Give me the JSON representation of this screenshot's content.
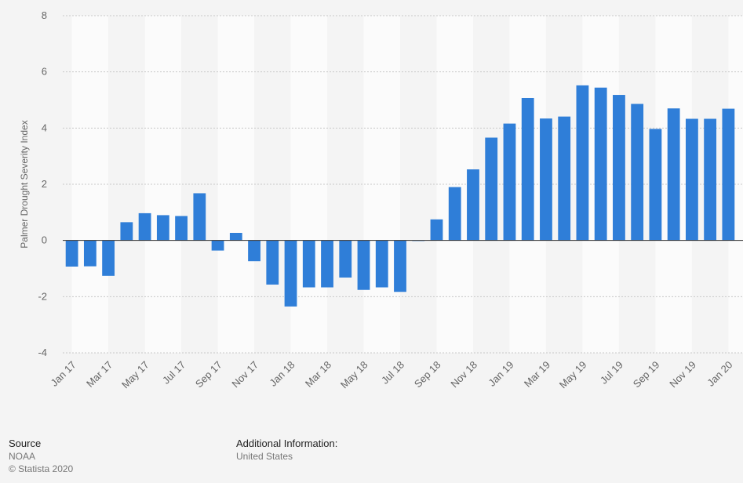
{
  "chart_data": {
    "type": "bar",
    "ylabel": "Palmer Drought Severity Index",
    "ylim": [
      -4,
      8
    ],
    "yticks": [
      -4,
      -2,
      0,
      2,
      4,
      6,
      8
    ],
    "grid": true,
    "bar_color": "#2f7ed8",
    "categories": [
      "Jan 17",
      "Feb 17",
      "Mar 17",
      "Apr 17",
      "May 17",
      "Jun 17",
      "Jul 17",
      "Aug 17",
      "Sep 17",
      "Oct 17",
      "Nov 17",
      "Dec 17",
      "Jan 18",
      "Feb 18",
      "Mar 18",
      "Apr 18",
      "May 18",
      "Jun 18",
      "Jul 18",
      "Aug 18",
      "Sep 18",
      "Oct 18",
      "Nov 18",
      "Dec 18",
      "Jan 19",
      "Feb 19",
      "Mar 19",
      "Apr 19",
      "May 19",
      "Jun 19",
      "Jul 19",
      "Aug 19",
      "Sep 19",
      "Oct 19",
      "Nov 19",
      "Dec 19",
      "Jan 20"
    ],
    "x_tick_labels": [
      "Jan 17",
      "Mar 17",
      "May 17",
      "Jul 17",
      "Sep 17",
      "Nov 17",
      "Jan 18",
      "Mar 18",
      "May 18",
      "Jul 18",
      "Sep 18",
      "Nov 18",
      "Jan 19",
      "Mar 19",
      "May 19",
      "Jul 19",
      "Sep 19",
      "Nov 19",
      "Jan 20"
    ],
    "values": [
      -0.93,
      -0.92,
      -1.26,
      0.65,
      0.97,
      0.9,
      0.87,
      1.68,
      -0.36,
      0.27,
      -0.74,
      -1.57,
      -2.35,
      -1.67,
      -1.67,
      -1.32,
      -1.76,
      -1.67,
      -1.83,
      -0.02,
      0.75,
      1.9,
      2.53,
      3.66,
      4.16,
      5.07,
      4.34,
      4.41,
      5.52,
      5.44,
      5.18,
      4.86,
      3.97,
      4.7,
      4.33,
      4.33,
      4.69
    ]
  },
  "footer": {
    "source_label": "Source",
    "source_value": "NOAA",
    "copyright": "© Statista 2020",
    "additional_label": "Additional Information:",
    "additional_value": "United States"
  }
}
